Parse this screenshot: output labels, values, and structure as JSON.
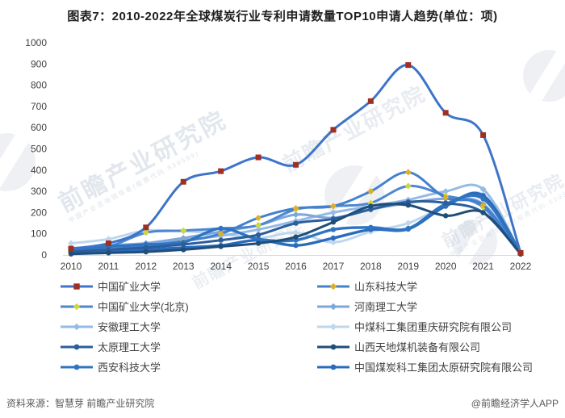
{
  "title": "图表7：2010-2022年全球煤炭行业专利申请数量TOP10申请人趋势(单位：项)",
  "footer": {
    "source": "资料来源：智慧芽 前瞻产业研究院",
    "credit": "@前瞻经济学人APP"
  },
  "watermark": {
    "text": "前瞻产业研究院",
    "subtext": "中国产业咨询领导者(股票代码:839599)"
  },
  "colors": {
    "axis_line": "#d9d9d9",
    "tick_text": "#404040",
    "legend_text": "#3f3f3f",
    "title_text": "#1f1f1f",
    "footer_text": "#595959"
  },
  "chart_data": {
    "type": "line",
    "title": "图表7：2010-2022年全球煤炭行业专利申请数量TOP10申请人趋势(单位：项)",
    "x": [
      2010,
      2011,
      2012,
      2013,
      2014,
      2015,
      2016,
      2017,
      2018,
      2019,
      2020,
      2021,
      2022
    ],
    "ylim": [
      0,
      1000
    ],
    "ytick_step": 100,
    "grid": false,
    "legend_position": "bottom",
    "series": [
      {
        "name": "中国矿业大学",
        "line_color": "#3d74c9",
        "marker": "square",
        "marker_color": "#a02f23",
        "line_width": 3,
        "values": [
          30,
          55,
          130,
          345,
          395,
          460,
          425,
          590,
          725,
          895,
          670,
          565,
          10
        ]
      },
      {
        "name": "山东科技大学",
        "line_color": "#4381cd",
        "marker": "diamond",
        "marker_color": "#dfaf2b",
        "line_width": 3,
        "values": [
          10,
          25,
          45,
          65,
          100,
          175,
          220,
          230,
          300,
          390,
          270,
          235,
          5
        ]
      },
      {
        "name": "中国矿业大学(北京)",
        "line_color": "#4e86d1",
        "marker": "diamond",
        "marker_color": "#cdd83f",
        "line_width": 3,
        "values": [
          20,
          40,
          105,
          115,
          125,
          140,
          215,
          230,
          245,
          325,
          280,
          225,
          5
        ]
      },
      {
        "name": "河南理工大学",
        "line_color": "#7da7dc",
        "marker": "diamond",
        "marker_color": "#7da7dc",
        "line_width": 3,
        "values": [
          15,
          35,
          55,
          80,
          110,
          140,
          190,
          175,
          215,
          245,
          265,
          240,
          5
        ]
      },
      {
        "name": "安徽理工大学",
        "line_color": "#95bbe5",
        "marker": "diamond",
        "marker_color": "#95bbe5",
        "line_width": 3,
        "values": [
          25,
          45,
          55,
          70,
          90,
          120,
          160,
          200,
          230,
          260,
          300,
          310,
          10
        ]
      },
      {
        "name": "中煤科工集团重庆研究院有限公司",
        "line_color": "#bdd7ee",
        "marker": "diamond",
        "marker_color": "#bdd7ee",
        "line_width": 3,
        "values": [
          55,
          75,
          115,
          112,
          100,
          80,
          105,
          60,
          110,
          150,
          230,
          285,
          5
        ]
      },
      {
        "name": "太原理工大学",
        "line_color": "#2c5d9c",
        "marker": "circle",
        "marker_color": "#2c5d9c",
        "line_width": 3,
        "values": [
          15,
          25,
          35,
          50,
          70,
          95,
          150,
          170,
          215,
          250,
          245,
          200,
          5
        ]
      },
      {
        "name": "山西天地煤机装备有限公司",
        "line_color": "#1f4e79",
        "marker": "circle",
        "marker_color": "#1f4e79",
        "line_width": 3,
        "values": [
          5,
          10,
          15,
          25,
          40,
          55,
          85,
          155,
          230,
          235,
          185,
          200,
          5
        ]
      },
      {
        "name": "西安科技大学",
        "line_color": "#2f74c0",
        "marker": "circle",
        "marker_color": "#2f74c0",
        "line_width": 3.4,
        "values": [
          25,
          40,
          50,
          60,
          125,
          75,
          70,
          120,
          130,
          125,
          240,
          265,
          10
        ]
      },
      {
        "name": "中国煤炭科工集团太原研究院有限公司",
        "line_color": "#2a6bbd",
        "marker": "circle",
        "marker_color": "#2a6bbd",
        "line_width": 3.4,
        "values": [
          10,
          15,
          25,
          35,
          45,
          70,
          45,
          80,
          120,
          122,
          230,
          280,
          10
        ]
      }
    ]
  }
}
